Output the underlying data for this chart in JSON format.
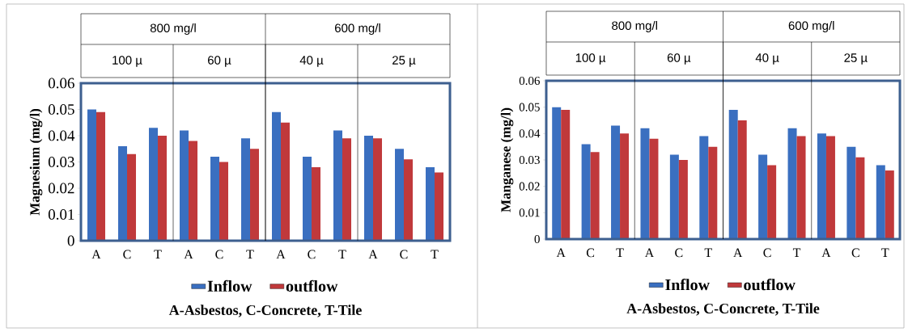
{
  "chart_data": [
    {
      "type": "bar",
      "ylabel": "Magnesium (mg/l)",
      "categories": [
        "A",
        "C",
        "T",
        "A",
        "C",
        "T",
        "A",
        "C",
        "T",
        "A",
        "C",
        "T"
      ],
      "series": [
        {
          "name": "Inflow",
          "color": "#3a6fc0",
          "values": [
            0.05,
            0.036,
            0.043,
            0.042,
            0.032,
            0.039,
            0.049,
            0.032,
            0.042,
            0.04,
            0.035,
            0.028
          ]
        },
        {
          "name": "outflow",
          "color": "#c0393b",
          "values": [
            0.049,
            0.033,
            0.04,
            0.038,
            0.03,
            0.035,
            0.045,
            0.028,
            0.039,
            0.039,
            0.031,
            0.026
          ]
        }
      ],
      "ylim": [
        0,
        0.06
      ],
      "yticks": [
        0,
        0.01,
        0.02,
        0.03,
        0.04,
        0.05,
        0.06
      ],
      "grid": false,
      "legend": "bottom",
      "annotations": [
        "800 mg/l",
        "600 mg/l",
        "100 µ",
        "60 µ",
        "40 µ",
        "25 µ",
        "A-Asbestos, C-Concrete, T-Tile"
      ]
    },
    {
      "type": "bar",
      "ylabel": "Manganese (mg/l)",
      "categories": [
        "A",
        "C",
        "T",
        "A",
        "C",
        "T",
        "A",
        "C",
        "T",
        "A",
        "C",
        "T"
      ],
      "series": [
        {
          "name": "Inflow",
          "color": "#3a6fc0",
          "values": [
            0.05,
            0.036,
            0.043,
            0.042,
            0.032,
            0.039,
            0.049,
            0.032,
            0.042,
            0.04,
            0.035,
            0.028
          ]
        },
        {
          "name": "outflow",
          "color": "#c0393b",
          "values": [
            0.049,
            0.033,
            0.04,
            0.038,
            0.03,
            0.035,
            0.045,
            0.028,
            0.039,
            0.039,
            0.031,
            0.026
          ]
        }
      ],
      "ylim": [
        0,
        0.06
      ],
      "yticks": [
        0,
        0.01,
        0.02,
        0.03,
        0.04,
        0.05,
        0.06
      ],
      "grid": false,
      "legend": "bottom",
      "annotations": [
        "800 mg/l",
        "600 mg/l",
        "100 µ",
        "60 µ",
        "40 µ",
        "25 µ",
        "A-Asbestos, C-Concrete, T-Tile"
      ]
    }
  ]
}
